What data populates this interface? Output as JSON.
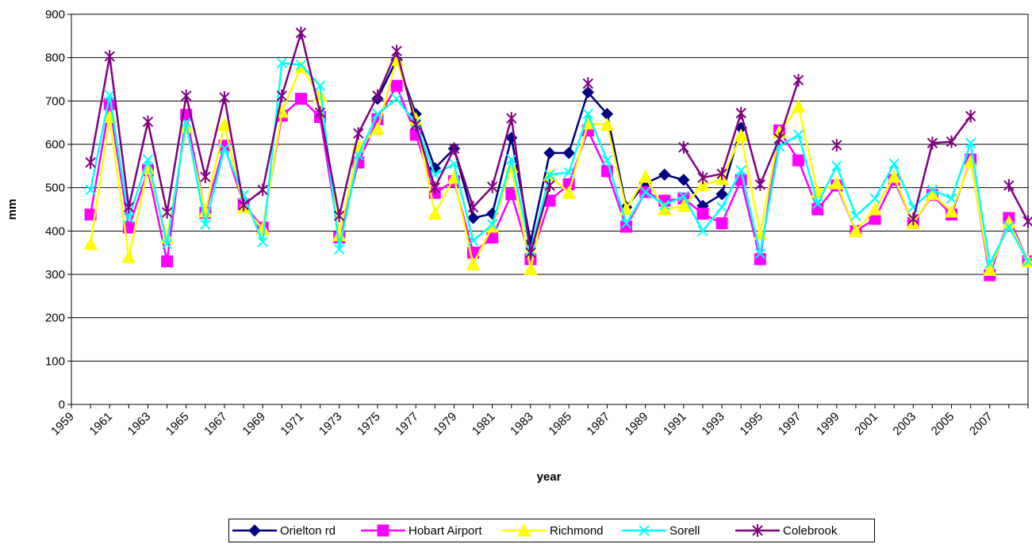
{
  "chart_data": {
    "type": "line",
    "xlabel": "year",
    "ylabel": "mm",
    "ylim": [
      0,
      900
    ],
    "yticks": [
      0,
      100,
      200,
      300,
      400,
      500,
      600,
      700,
      800,
      900
    ],
    "xlim": [
      1959,
      2009
    ],
    "xtick_labels": [
      "1959",
      "1961",
      "1963",
      "1965",
      "1967",
      "1969",
      "1971",
      "1973",
      "1975",
      "1977",
      "1979",
      "1981",
      "1983",
      "1985",
      "1987",
      "1989",
      "1991",
      "1993",
      "1995",
      "1997",
      "1999",
      "2001",
      "2003",
      "2005",
      "2007"
    ],
    "grid": "horizontal",
    "legend_position": "bottom",
    "x": [
      1960,
      1961,
      1962,
      1963,
      1964,
      1965,
      1966,
      1967,
      1968,
      1969,
      1970,
      1971,
      1972,
      1973,
      1974,
      1975,
      1976,
      1977,
      1978,
      1979,
      1980,
      1981,
      1982,
      1983,
      1984,
      1985,
      1986,
      1987,
      1988,
      1989,
      1990,
      1991,
      1992,
      1993,
      1994,
      1995,
      1996,
      1997,
      1998,
      1999,
      2000,
      2001,
      2002,
      2003,
      2004,
      2005,
      2006,
      2007,
      2008,
      2009
    ],
    "series": [
      {
        "name": "Orielton rd",
        "color": "#000080",
        "marker": "diamond",
        "values": [
          null,
          null,
          null,
          null,
          null,
          null,
          null,
          null,
          null,
          null,
          null,
          null,
          null,
          null,
          null,
          705,
          795,
          670,
          545,
          590,
          430,
          440,
          615,
          375,
          580,
          580,
          720,
          670,
          455,
          510,
          530,
          518,
          458,
          485,
          638,
          null,
          null,
          null,
          null,
          null,
          null,
          null,
          null,
          null,
          null,
          null,
          null,
          null,
          null,
          null
        ]
      },
      {
        "name": "Hobart Airport",
        "color": "#FF00FF",
        "marker": "square",
        "values": [
          438,
          693,
          408,
          540,
          330,
          668,
          442,
          597,
          462,
          408,
          666,
          705,
          663,
          385,
          558,
          658,
          735,
          622,
          488,
          515,
          350,
          385,
          485,
          335,
          470,
          508,
          632,
          538,
          410,
          490,
          470,
          475,
          440,
          418,
          518,
          335,
          632,
          563,
          450,
          505,
          400,
          428,
          518,
          418,
          483,
          438,
          565,
          298,
          430,
          330
        ]
      },
      {
        "name": "Richmond",
        "color": "#FFFF00",
        "marker": "triangle",
        "values": [
          370,
          663,
          340,
          545,
          385,
          640,
          445,
          645,
          455,
          405,
          675,
          778,
          712,
          390,
          595,
          635,
          795,
          658,
          440,
          523,
          323,
          410,
          548,
          312,
          528,
          488,
          648,
          645,
          450,
          525,
          450,
          458,
          505,
          520,
          620,
          393,
          628,
          687,
          490,
          510,
          400,
          450,
          525,
          418,
          485,
          445,
          560,
          310,
          420,
          330
        ]
      },
      {
        "name": "Sorell",
        "color": "#00FFFF",
        "marker": "x",
        "values": [
          495,
          713,
          430,
          565,
          370,
          650,
          415,
          590,
          483,
          375,
          788,
          783,
          735,
          358,
          575,
          670,
          705,
          648,
          530,
          555,
          378,
          415,
          565,
          355,
          530,
          535,
          670,
          563,
          418,
          490,
          460,
          480,
          400,
          455,
          540,
          348,
          595,
          622,
          463,
          550,
          435,
          475,
          555,
          455,
          495,
          475,
          603,
          325,
          410,
          330
        ]
      },
      {
        "name": "Colebrook",
        "color": "#800080",
        "marker": "star",
        "values": [
          558,
          803,
          455,
          652,
          443,
          712,
          525,
          708,
          460,
          495,
          712,
          857,
          673,
          435,
          625,
          712,
          815,
          645,
          500,
          590,
          455,
          502,
          660,
          350,
          505,
          null,
          740,
          null,
          null,
          null,
          null,
          593,
          523,
          532,
          672,
          507,
          613,
          748,
          null,
          598,
          null,
          null,
          null,
          428,
          603,
          606,
          665,
          null,
          505,
          422
        ]
      }
    ]
  }
}
